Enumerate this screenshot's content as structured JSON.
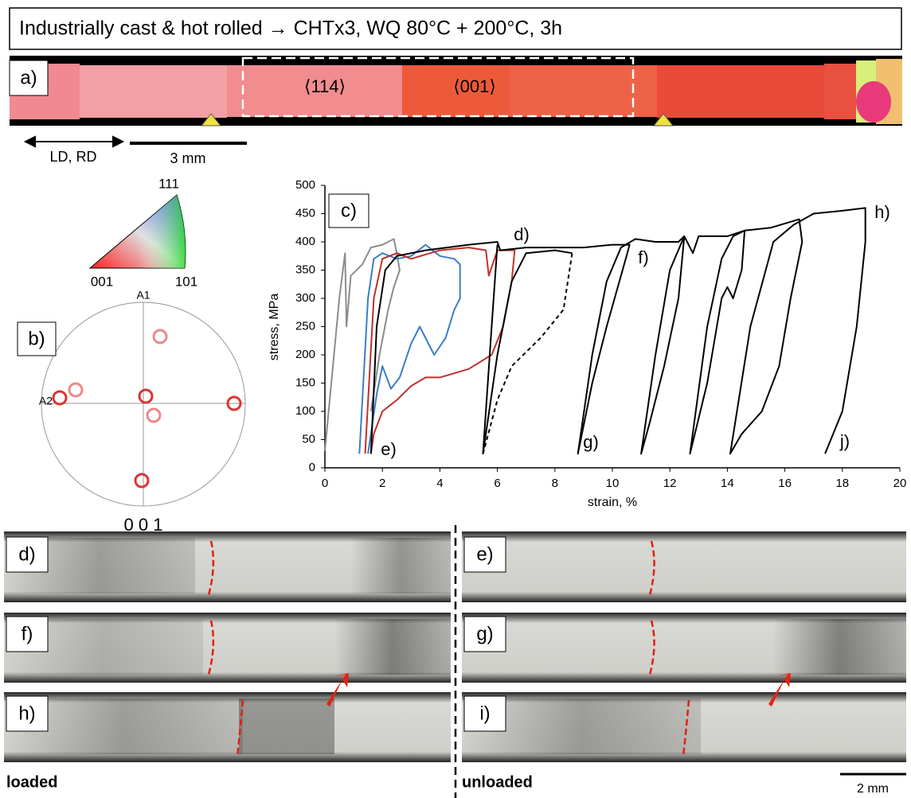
{
  "header": {
    "title": "Industrially cast & hot rolled → CHTx3, WQ 80°C + 200°C, 3h"
  },
  "ebsd": {
    "label": "a)",
    "orientations": [
      "⟨114⟩",
      "⟨001⟩"
    ],
    "direction": "LD, RD",
    "scale_bar": "3 mm"
  },
  "ipf": {
    "corners": [
      "111",
      "001",
      "101"
    ]
  },
  "pole_figure": {
    "label": "b)",
    "axes": [
      "A1",
      "A2"
    ],
    "plane": "0 0 1"
  },
  "chart_data": {
    "type": "line",
    "label": "c)",
    "xlabel": "strain, %",
    "ylabel": "stress, MPa",
    "xlim": [
      0,
      20
    ],
    "ylim": [
      0,
      500
    ],
    "xticks": [
      0,
      2,
      4,
      6,
      8,
      10,
      12,
      14,
      16,
      18,
      20
    ],
    "yticks": [
      0,
      50,
      100,
      150,
      200,
      250,
      300,
      350,
      400,
      450,
      500
    ],
    "annotations": [
      "d)",
      "e)",
      "f)",
      "g)",
      "h)",
      "j)"
    ],
    "series": [
      {
        "color": "#8c8c8c",
        "style": "solid",
        "x": [
          0,
          0.5,
          0.7,
          0.75,
          0.9,
          1.3,
          1.6,
          2.0,
          2.4,
          2.5,
          2.6,
          2.4,
          2.2,
          1.9,
          1.6
        ],
        "values": [
          30,
          300,
          380,
          250,
          340,
          360,
          390,
          395,
          405,
          380,
          350,
          320,
          280,
          200,
          100
        ]
      },
      {
        "color": "#3a7dc9",
        "style": "solid",
        "x": [
          1.2,
          1.5,
          1.7,
          2.0,
          2.5,
          3.0,
          3.5,
          4.0,
          4.5,
          4.7,
          4.7,
          4.5,
          4.2,
          3.8,
          3.3,
          3.0,
          2.6,
          2.3,
          2.0,
          1.8,
          1.5
        ],
        "values": [
          25,
          300,
          370,
          380,
          370,
          375,
          395,
          375,
          370,
          360,
          300,
          280,
          230,
          200,
          250,
          220,
          160,
          140,
          180,
          130,
          25
        ]
      },
      {
        "color": "#c0302a",
        "style": "solid",
        "x": [
          1.4,
          1.7,
          2.0,
          2.5,
          3.0,
          4.0,
          5.0,
          5.6,
          5.7,
          6.0,
          6.6,
          6.5,
          6.2,
          5.8,
          5.0,
          4.0,
          3.5,
          3.0,
          2.5,
          2.0,
          1.7,
          1.6
        ],
        "values": [
          25,
          300,
          370,
          380,
          370,
          385,
          390,
          385,
          340,
          385,
          385,
          330,
          250,
          200,
          175,
          160,
          160,
          145,
          120,
          100,
          60,
          25
        ]
      },
      {
        "color": "#000000",
        "style": "solid",
        "x": [
          1.6,
          1.8,
          2.1,
          2.5,
          3.5,
          5.0,
          6.0,
          6.1,
          7.0,
          8.0,
          9.0,
          10.0,
          10.6,
          10.3,
          9.8,
          9.3,
          8.8,
          9.3,
          9.8,
          10.3,
          10.8,
          11.5,
          12.3,
          12.5,
          12.3,
          11.8,
          11.3,
          11.0,
          11.5,
          12.0,
          12.5,
          12.8,
          13.0,
          14.0,
          14.6,
          14.5,
          14.2,
          14.0,
          13.8,
          13.3,
          12.7,
          13.3,
          13.8,
          14.2,
          14.6,
          15.5,
          16.5,
          16.6,
          16.2,
          15.8,
          15.2,
          14.5,
          14.1,
          14.8,
          15.6,
          16.3,
          17.0,
          18.0,
          18.8,
          18.8,
          18.5,
          18.0,
          17.4,
          null,
          6.0,
          5.8,
          5.5,
          6.0,
          6.5,
          7.0,
          8.0,
          8.6
        ],
        "values": [
          25,
          250,
          350,
          375,
          385,
          395,
          400,
          385,
          390,
          390,
          390,
          395,
          395,
          340,
          250,
          150,
          25,
          200,
          330,
          390,
          405,
          400,
          400,
          410,
          300,
          180,
          80,
          25,
          200,
          350,
          410,
          380,
          410,
          410,
          420,
          350,
          300,
          320,
          300,
          150,
          25,
          250,
          370,
          410,
          420,
          425,
          440,
          400,
          300,
          180,
          100,
          60,
          25,
          250,
          400,
          430,
          450,
          455,
          460,
          400,
          250,
          100,
          25,
          null,
          395,
          250,
          25,
          200,
          330,
          380,
          385,
          380
        ]
      },
      {
        "color": "#000000",
        "style": "dashed",
        "x": [
          5.5,
          6.0,
          6.5,
          7.5,
          8.3,
          8.6
        ],
        "values": [
          25,
          120,
          180,
          230,
          280,
          380
        ]
      }
    ]
  },
  "micrographs": {
    "panels": [
      "d)",
      "e)",
      "f)",
      "g)",
      "h)",
      "i)"
    ],
    "captions": [
      "loaded",
      "unloaded"
    ],
    "scale_bar": "2 mm"
  }
}
